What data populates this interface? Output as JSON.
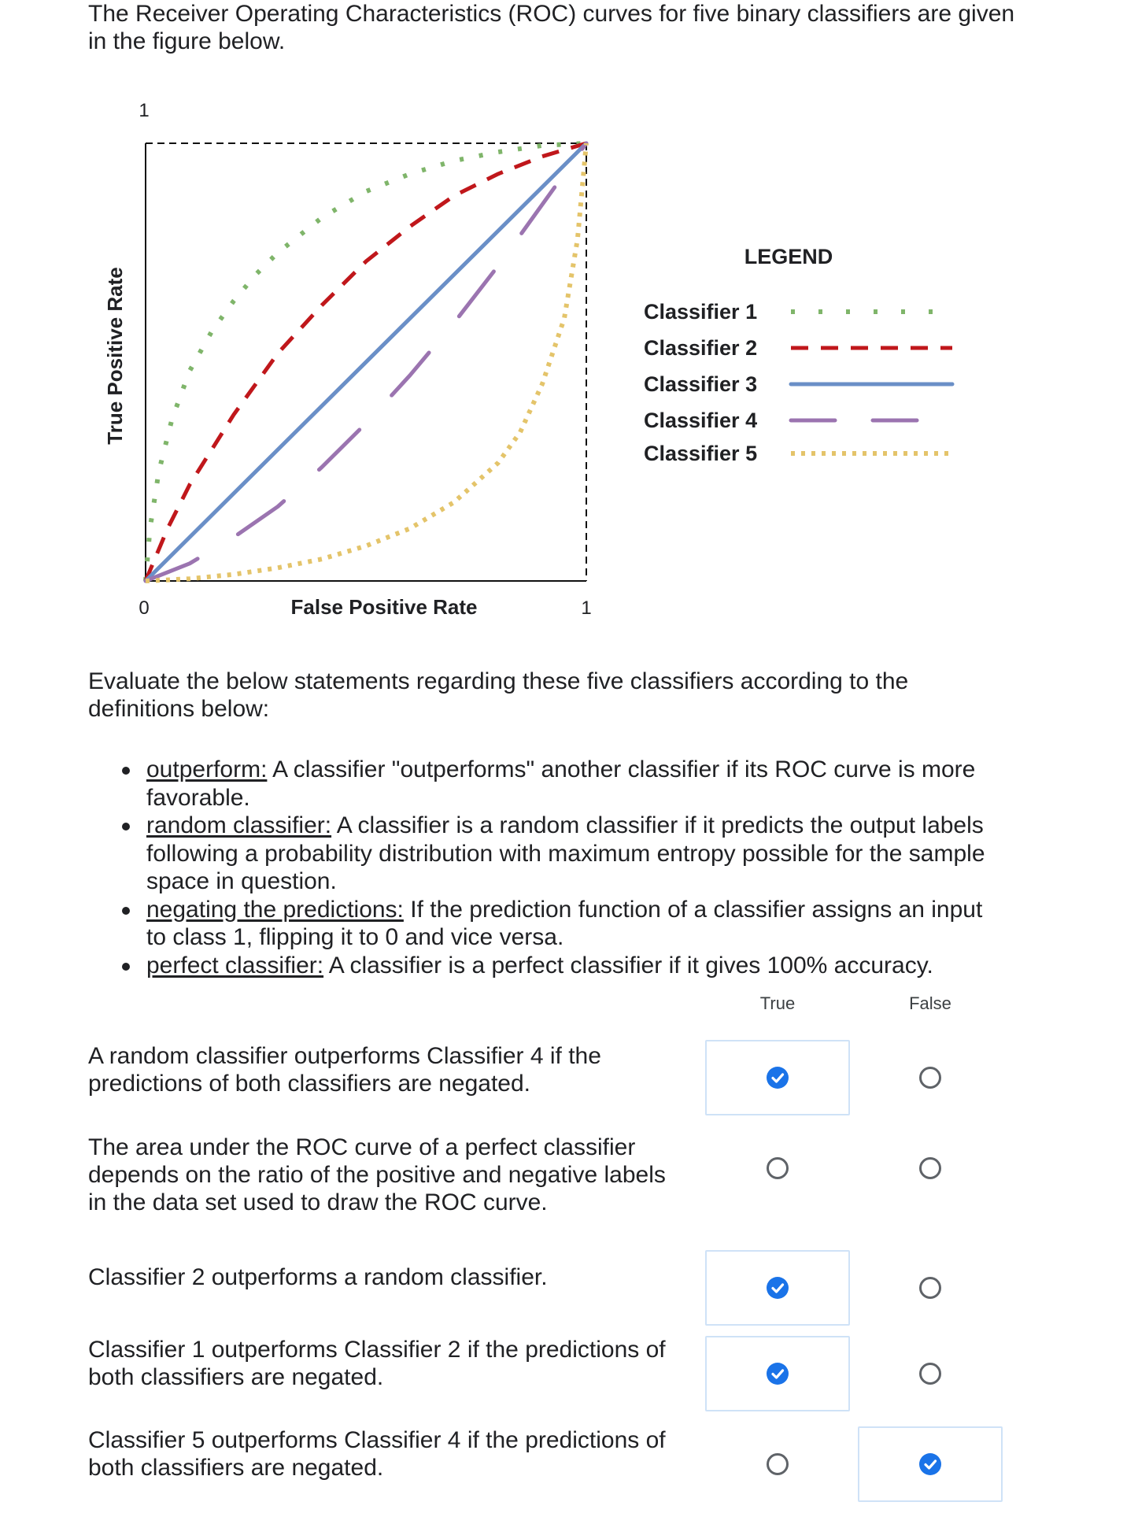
{
  "intro_text": "The Receiver Operating Characteristics (ROC) curves for five binary classifiers are given in the figure below.",
  "chart_data": {
    "type": "line",
    "xlabel": "False Positive Rate",
    "ylabel": "True Positive Rate",
    "x_tick_labels": [
      "0",
      "1"
    ],
    "y_tick_labels": [
      "1"
    ],
    "xlim": [
      0,
      1
    ],
    "ylim": [
      0,
      1
    ],
    "grid": false,
    "legend_title": "LEGEND",
    "legend_position": "right",
    "series": [
      {
        "name": "Classifier 1",
        "color": "#7fb56a",
        "style": "dotted",
        "x": [
          0,
          0.01,
          0.03,
          0.06,
          0.1,
          0.15,
          0.2,
          0.25,
          0.3,
          0.4,
          0.5,
          0.6,
          0.7,
          0.8,
          0.9,
          1.0
        ],
        "y": [
          0,
          0.12,
          0.25,
          0.37,
          0.48,
          0.57,
          0.64,
          0.7,
          0.75,
          0.83,
          0.89,
          0.93,
          0.96,
          0.98,
          0.995,
          1.0
        ]
      },
      {
        "name": "Classifier 2",
        "color": "#c0171b",
        "style": "dashed",
        "x": [
          0,
          0.05,
          0.1,
          0.2,
          0.3,
          0.4,
          0.5,
          0.6,
          0.7,
          0.8,
          0.9,
          1.0
        ],
        "y": [
          0,
          0.12,
          0.22,
          0.38,
          0.52,
          0.63,
          0.73,
          0.81,
          0.88,
          0.93,
          0.97,
          1.0
        ]
      },
      {
        "name": "Classifier 3",
        "color": "#6a8fc7",
        "style": "solid",
        "x": [
          0,
          1
        ],
        "y": [
          0,
          1
        ]
      },
      {
        "name": "Classifier 4",
        "color": "#9b74b0",
        "style": "long-dash",
        "x": [
          0,
          0.1,
          0.2,
          0.3,
          0.4,
          0.5,
          0.6,
          0.7,
          0.8,
          0.9,
          1.0
        ],
        "y": [
          0,
          0.04,
          0.1,
          0.17,
          0.26,
          0.36,
          0.47,
          0.59,
          0.72,
          0.86,
          1.0
        ]
      },
      {
        "name": "Classifier 5",
        "color": "#e4c46a",
        "style": "dotted",
        "x": [
          0,
          0.1,
          0.2,
          0.3,
          0.4,
          0.5,
          0.6,
          0.7,
          0.8,
          0.85,
          0.9,
          0.95,
          0.98,
          1.0
        ],
        "y": [
          0,
          0.005,
          0.015,
          0.03,
          0.05,
          0.08,
          0.12,
          0.18,
          0.27,
          0.34,
          0.45,
          0.6,
          0.78,
          1.0
        ]
      }
    ]
  },
  "evaluate_text": "Evaluate the below statements regarding these five classifiers according to the definitions below:",
  "definitions": [
    {
      "term": "outperform:",
      "text": " A classifier \"outperforms\" another classifier if its ROC curve is more favorable."
    },
    {
      "term": "random classifier:",
      "text": " A classifier is a random classifier if it predicts the output labels following a probability distribution with maximum entropy possible for the sample space in question."
    },
    {
      "term": "negating the predictions:",
      "text": " If the prediction function of a classifier assigns an input to class 1, flipping it to 0 and vice versa."
    },
    {
      "term": "perfect classifier:",
      "text": " A classifier is a perfect classifier if it gives 100% accuracy."
    }
  ],
  "columns": {
    "true_label": "True",
    "false_label": "False"
  },
  "statements": [
    {
      "text": "A random classifier outperforms Classifier 4 if the predictions of both classifiers are negated.",
      "selected": "True"
    },
    {
      "text": "The area under the ROC curve of a perfect classifier depends on the ratio of the positive and negative labels in the data set  used to draw the ROC curve.",
      "selected": ""
    },
    {
      "text": "Classifier 2 outperforms a random classifier.",
      "selected": "True"
    },
    {
      "text": "Classifier 1 outperforms Classifier 2 if the predictions of both classifiers are negated.",
      "selected": "True"
    },
    {
      "text": "Classifier 5 outperforms Classifier 4 if the predictions of both classifiers are negated.",
      "selected": "False"
    }
  ],
  "colors": {
    "selected_radio": "#1a73e8",
    "selected_box_border": "#cfe2f7"
  }
}
